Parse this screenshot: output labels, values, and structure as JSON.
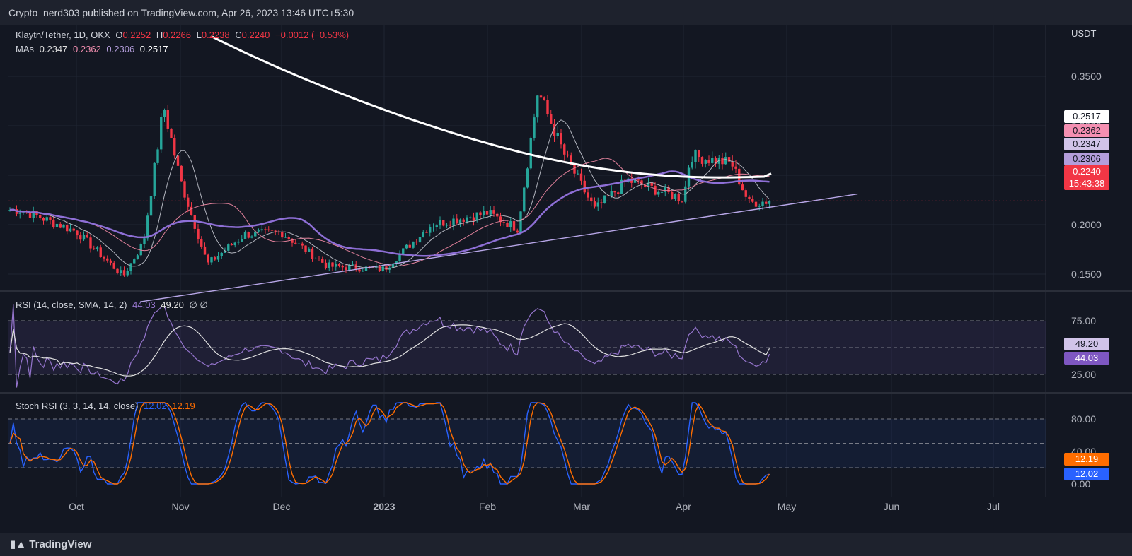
{
  "topbar": {
    "text": "Crypto_nerd303 published on TradingView.com, Apr 26, 2023 13:46 UTC+5:30"
  },
  "legend": {
    "symbol": "Klaytn/Tether, 1D, OKX",
    "o_label": "O",
    "o_value": "0.2252",
    "h_label": "H",
    "h_value": "0.2266",
    "l_label": "L",
    "l_value": "0.2238",
    "c_label": "C",
    "c_value": "0.2240",
    "change": "−0.0012 (−0.53%)",
    "mas_label": "MAs",
    "ma_values": [
      "0.2347",
      "0.2362",
      "0.2306",
      "0.2517"
    ]
  },
  "colors": {
    "bg": "#131722",
    "grid": "#1f2433",
    "up": "#26a69a",
    "down": "#f23645",
    "ma20": "#b2b5be",
    "ma50": "#e0809a",
    "ma100": "#b39ddb",
    "ma200": "#ffffff",
    "ma_long": "#8e6fd6",
    "rsi": "#9575cd",
    "rsi_ma": "#e0e0e0",
    "stoch_k": "#2962ff",
    "stoch_d": "#ff6d00",
    "trend": "#b8a7e8"
  },
  "price_axis": {
    "unit": "USDT",
    "ticks": [
      "0.3500",
      "0.3000",
      "0.2500",
      "0.2000",
      "0.1500"
    ]
  },
  "price_badges": [
    {
      "label": "0.2517",
      "bg": "#ffffff",
      "fg": "#131722"
    },
    {
      "label": "0.2362",
      "bg": "#f48fb1",
      "fg": "#131722"
    },
    {
      "label": "0.2347",
      "bg": "#d1c4e9",
      "fg": "#131722"
    },
    {
      "label": "0.2306",
      "bg": "#b39ddb",
      "fg": "#131722"
    }
  ],
  "last_price": {
    "label": "0.2240",
    "countdown": "15:43:38"
  },
  "rsi": {
    "title": "RSI (14, close, SMA, 14, 2)",
    "value": "44.03",
    "ma_value": "49.20",
    "extra": "∅ ∅",
    "ticks": [
      "75.00",
      "25.00"
    ]
  },
  "stoch": {
    "title": "Stoch RSI (3, 3, 14, 14, close)",
    "k_value": "12.02",
    "d_value": "12.19",
    "ticks": [
      "80.00",
      "40.00",
      "0.00"
    ]
  },
  "time_axis": {
    "labels": [
      "Oct",
      "Nov",
      "Dec",
      "2023",
      "Feb",
      "Mar",
      "Apr",
      "May",
      "Jun",
      "Jul"
    ]
  },
  "brand": "TradingView",
  "chart_data": {
    "type": "candlestick",
    "symbol": "Klaytn/Tether",
    "interval": "1D",
    "exchange": "OKX",
    "y_unit": "USDT",
    "ylim": [
      0.11,
      0.38
    ],
    "ohlc_approx": [
      [
        "2022-09-15",
        0.232,
        0.235,
        0.21,
        0.215
      ],
      [
        "2022-10-01",
        0.196,
        0.205,
        0.188,
        0.193
      ],
      [
        "2022-10-15",
        0.16,
        0.165,
        0.14,
        0.148
      ],
      [
        "2022-10-21",
        0.14,
        0.19,
        0.135,
        0.182
      ],
      [
        "2022-10-27",
        0.3,
        0.345,
        0.29,
        0.32
      ],
      [
        "2022-11-01",
        0.255,
        0.262,
        0.24,
        0.245
      ],
      [
        "2022-11-09",
        0.18,
        0.19,
        0.15,
        0.16
      ],
      [
        "2022-11-20",
        0.18,
        0.196,
        0.178,
        0.19
      ],
      [
        "2022-12-01",
        0.19,
        0.2,
        0.185,
        0.192
      ],
      [
        "2022-12-15",
        0.17,
        0.175,
        0.15,
        0.158
      ],
      [
        "2023-01-01",
        0.152,
        0.158,
        0.148,
        0.155
      ],
      [
        "2023-01-15",
        0.19,
        0.205,
        0.188,
        0.2
      ],
      [
        "2023-02-01",
        0.21,
        0.222,
        0.205,
        0.212
      ],
      [
        "2023-02-10",
        0.196,
        0.2,
        0.19,
        0.196
      ],
      [
        "2023-02-16",
        0.3,
        0.375,
        0.29,
        0.335
      ],
      [
        "2023-02-24",
        0.3,
        0.31,
        0.265,
        0.27
      ],
      [
        "2023-03-05",
        0.23,
        0.24,
        0.2,
        0.215
      ],
      [
        "2023-03-15",
        0.238,
        0.26,
        0.232,
        0.245
      ],
      [
        "2023-04-01",
        0.222,
        0.23,
        0.212,
        0.226
      ],
      [
        "2023-04-03",
        0.23,
        0.29,
        0.228,
        0.27
      ],
      [
        "2023-04-15",
        0.27,
        0.285,
        0.255,
        0.262
      ],
      [
        "2023-04-20",
        0.235,
        0.24,
        0.215,
        0.222
      ],
      [
        "2023-04-26",
        0.2252,
        0.2266,
        0.2238,
        0.224
      ]
    ],
    "moving_averages": [
      {
        "last": 0.2347,
        "color": "#b2b5be"
      },
      {
        "last": 0.2362,
        "color": "#e0809a"
      },
      {
        "last": 0.2306,
        "color": "#b39ddb"
      },
      {
        "last": 0.2517,
        "color": "#ffffff"
      }
    ],
    "trendline": [
      [
        "2022-10-20",
        0.122
      ],
      [
        "2023-05-22",
        0.231
      ]
    ],
    "rsi_last": 44.03,
    "rsi_ma_last": 49.2,
    "stoch_k_last": 12.02,
    "stoch_d_last": 12.19,
    "grid": true,
    "legend_position": "top-left"
  }
}
